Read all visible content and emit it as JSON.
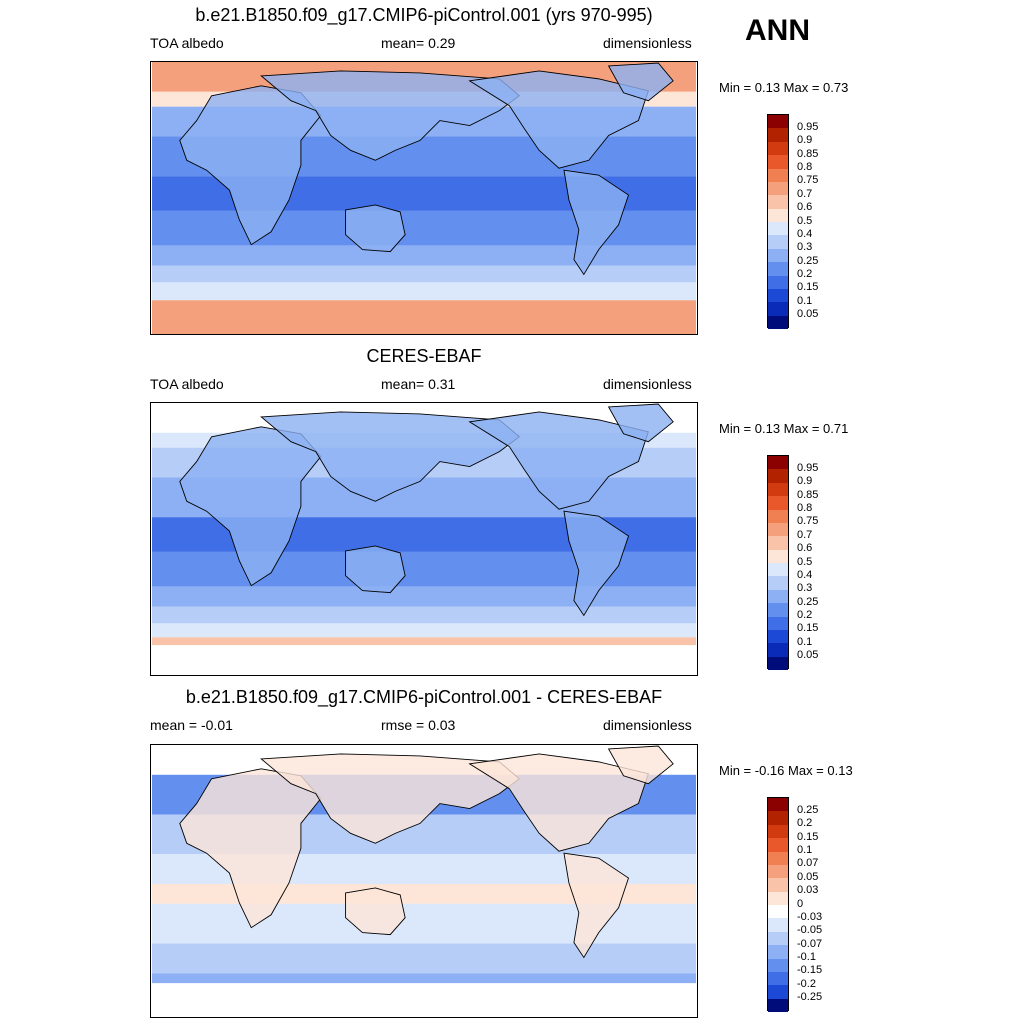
{
  "season": "ANN",
  "panels": [
    {
      "title": "b.e21.B1850.f09_g17.CMIP6-piControl.001 (yrs 970-995)",
      "left_label": "TOA albedo",
      "center_label": "mean=   0.29",
      "right_label": "dimensionless",
      "minmax": "Min =   0.13 Max =   0.73",
      "colorbar_labels": [
        "0.95",
        "0.9",
        "0.85",
        "0.8",
        "0.75",
        "0.7",
        "0.6",
        "0.5",
        "0.4",
        "0.3",
        "0.25",
        "0.2",
        "0.15",
        "0.1",
        "0.05"
      ],
      "colorbar_colors": [
        "#8b0000",
        "#b22200",
        "#d23b0f",
        "#e8582b",
        "#f07f52",
        "#f4a07c",
        "#f8c3a8",
        "#fde5d8",
        "#dbe8fb",
        "#b6cdf7",
        "#8cb0f3",
        "#6390ee",
        "#3f6ee6",
        "#1c49d6",
        "#0a2bb8",
        "#000c7a"
      ],
      "map_style": "model"
    },
    {
      "title": "CERES-EBAF",
      "left_label": "TOA albedo",
      "center_label": "mean=   0.31",
      "right_label": "dimensionless",
      "minmax": "Min =   0.13 Max =   0.71",
      "colorbar_labels": [
        "0.95",
        "0.9",
        "0.85",
        "0.8",
        "0.75",
        "0.7",
        "0.6",
        "0.5",
        "0.4",
        "0.3",
        "0.25",
        "0.2",
        "0.15",
        "0.1",
        "0.05"
      ],
      "colorbar_colors": [
        "#8b0000",
        "#b22200",
        "#d23b0f",
        "#e8582b",
        "#f07f52",
        "#f4a07c",
        "#f8c3a8",
        "#fde5d8",
        "#dbe8fb",
        "#b6cdf7",
        "#8cb0f3",
        "#6390ee",
        "#3f6ee6",
        "#1c49d6",
        "#0a2bb8",
        "#000c7a"
      ],
      "map_style": "obs"
    },
    {
      "title": "b.e21.B1850.f09_g17.CMIP6-piControl.001 - CERES-EBAF",
      "left_label": "mean =  -0.01",
      "center_label": "rmse =   0.03",
      "right_label": "dimensionless",
      "minmax": "Min =  -0.16 Max =   0.13",
      "colorbar_labels": [
        "0.25",
        "0.2",
        "0.15",
        "0.1",
        "0.07",
        "0.05",
        "0.03",
        "0",
        "-0.03",
        "-0.05",
        "-0.07",
        "-0.1",
        "-0.15",
        "-0.2",
        "-0.25"
      ],
      "colorbar_colors": [
        "#8b0000",
        "#b22200",
        "#d23b0f",
        "#e8582b",
        "#f07f52",
        "#f4a07c",
        "#f8c3a8",
        "#fde5d8",
        "#ffffff",
        "#dbe8fb",
        "#b6cdf7",
        "#8cb0f3",
        "#6390ee",
        "#3f6ee6",
        "#1c49d6",
        "#000c7a"
      ],
      "map_style": "diff"
    }
  ]
}
